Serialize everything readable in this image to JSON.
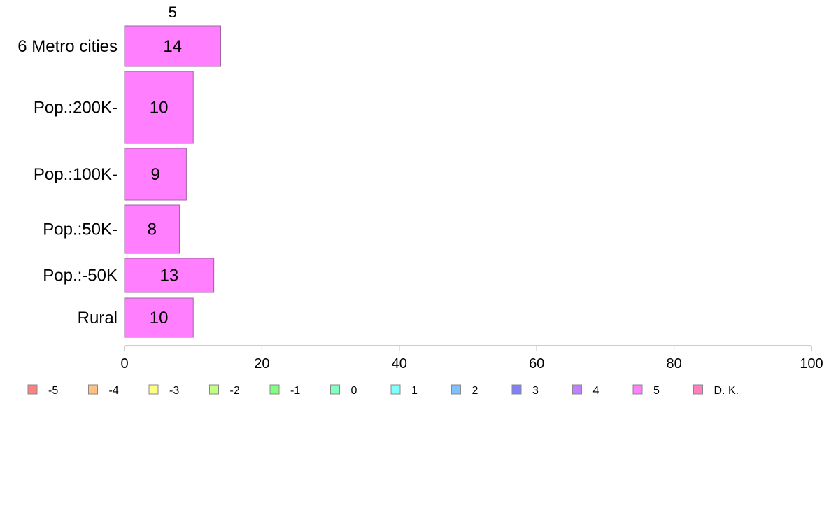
{
  "chart_data": {
    "type": "bar",
    "orientation": "horizontal",
    "stacked": true,
    "column_header": "5",
    "categories": [
      "6 Metro cities",
      "Pop.:200K-",
      "Pop.:100K-",
      "Pop.:50K-",
      "Pop.:-50K",
      "Rural"
    ],
    "series": [
      {
        "name": "5",
        "color": "#ff7fff",
        "values": [
          14,
          10,
          9,
          8,
          13,
          10
        ]
      }
    ],
    "xlim": [
      0,
      100
    ],
    "x_ticks": [
      0,
      20,
      40,
      60,
      80,
      100
    ],
    "grid": false,
    "legend_position": "bottom",
    "legend": [
      {
        "label": "-5",
        "color": "#ff8080"
      },
      {
        "label": "-4",
        "color": "#ffc080"
      },
      {
        "label": "-3",
        "color": "#ffff80"
      },
      {
        "label": "-2",
        "color": "#c0ff80"
      },
      {
        "label": "-1",
        "color": "#80ff80"
      },
      {
        "label": "0",
        "color": "#80ffc0"
      },
      {
        "label": "1",
        "color": "#80ffff"
      },
      {
        "label": "2",
        "color": "#80c0ff"
      },
      {
        "label": "3",
        "color": "#8080ff"
      },
      {
        "label": "4",
        "color": "#c080ff"
      },
      {
        "label": "5",
        "color": "#ff80ff"
      },
      {
        "label": "D. K.",
        "color": "#ff80c0"
      }
    ]
  }
}
